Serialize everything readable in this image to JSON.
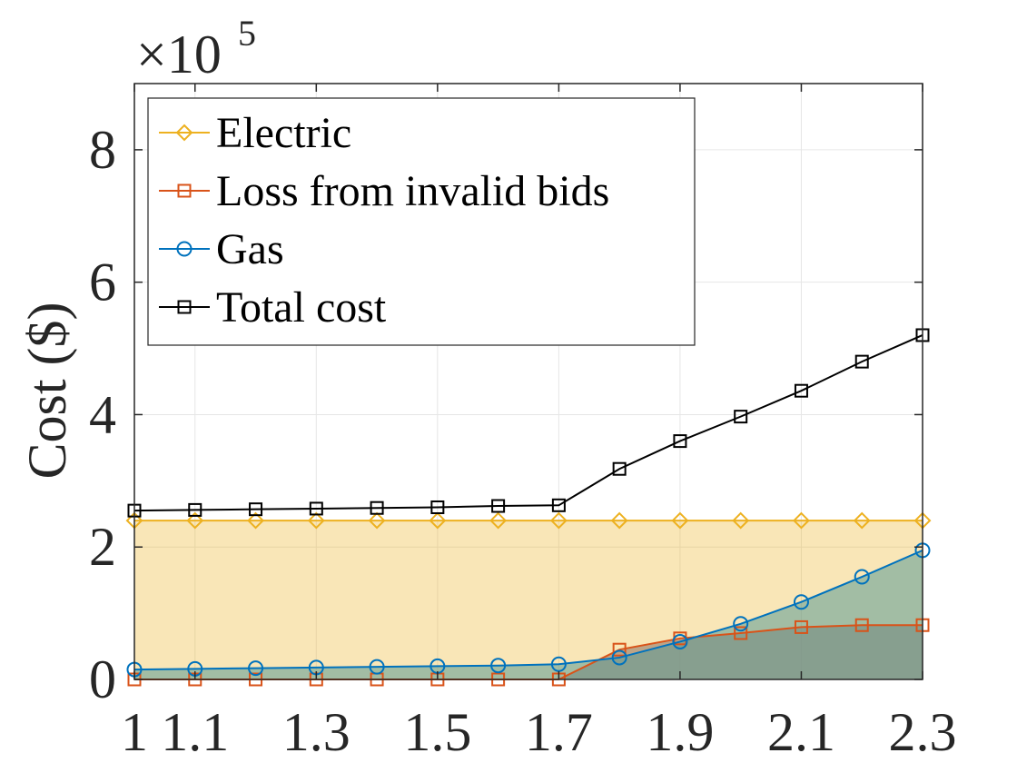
{
  "chart_data": {
    "type": "line",
    "title": "",
    "xlabel": "",
    "ylabel": "Cost ($)",
    "y_exponent_base": "×10",
    "y_exponent_power": "5",
    "xlim": [
      1,
      2.3
    ],
    "ylim": [
      0,
      9
    ],
    "x": [
      1.0,
      1.1,
      1.2,
      1.3,
      1.4,
      1.5,
      1.6,
      1.7,
      1.8,
      1.9,
      2.0,
      2.1,
      2.2,
      2.3
    ],
    "x_ticks": [
      1,
      1.1,
      1.3,
      1.5,
      1.7,
      1.9,
      2.1,
      2.3
    ],
    "x_tick_labels": [
      "1",
      "1.1",
      "1.3",
      "1.5",
      "1.7",
      "1.9",
      "2.1",
      "2.3"
    ],
    "y_ticks": [
      0,
      2,
      4,
      6,
      8
    ],
    "y_tick_labels": [
      "0",
      "2",
      "4",
      "6",
      "8"
    ],
    "grid": true,
    "legend_position": "top-left",
    "series": [
      {
        "name": "Electric",
        "color": "#EDB120",
        "marker": "diamond",
        "filled_area": true,
        "fill_color": "#EDB120",
        "values": [
          2.4,
          2.4,
          2.4,
          2.4,
          2.4,
          2.4,
          2.4,
          2.4,
          2.4,
          2.4,
          2.4,
          2.4,
          2.4,
          2.4
        ]
      },
      {
        "name": "Loss from invalid bids",
        "color": "#D95319",
        "marker": "square",
        "filled_area": true,
        "fill_color": "#8C6E60",
        "values": [
          0,
          0,
          0,
          0,
          0,
          0,
          0,
          0,
          0.45,
          0.62,
          0.7,
          0.79,
          0.82,
          0.82
        ]
      },
      {
        "name": "Gas",
        "color": "#0072BD",
        "marker": "circle",
        "filled_area": true,
        "fill_color": "#5B9A96",
        "values": [
          0.15,
          0.16,
          0.17,
          0.18,
          0.19,
          0.2,
          0.21,
          0.23,
          0.33,
          0.57,
          0.84,
          1.17,
          1.55,
          1.95
        ]
      },
      {
        "name": "Total cost",
        "color": "#000000",
        "marker": "square",
        "filled_area": false,
        "values": [
          2.55,
          2.56,
          2.57,
          2.58,
          2.59,
          2.6,
          2.62,
          2.63,
          3.18,
          3.6,
          3.97,
          4.36,
          4.8,
          5.2
        ]
      }
    ]
  }
}
